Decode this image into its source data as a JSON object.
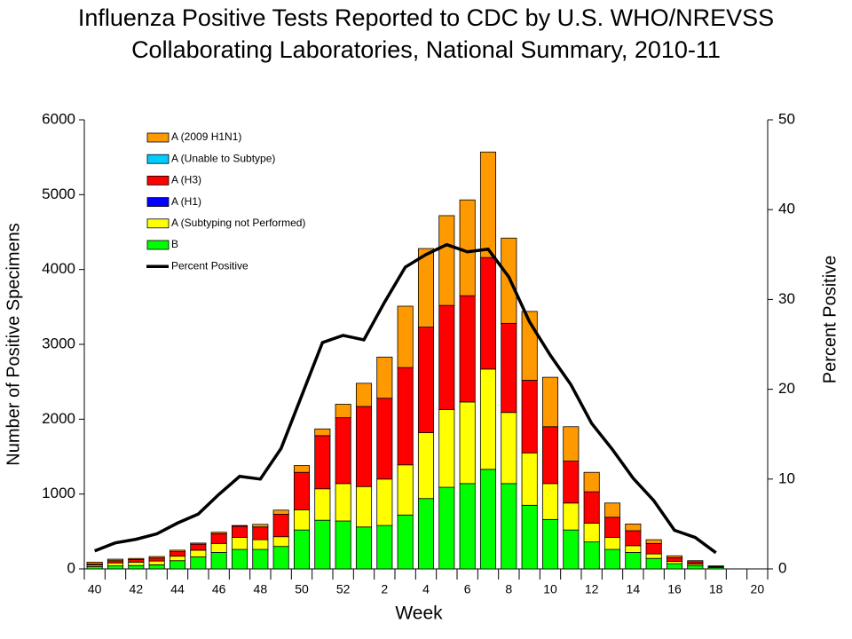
{
  "chart_data": {
    "type": "bar",
    "title": [
      "Influenza Positive Tests Reported to CDC by U.S. WHO/NREVSS",
      "Collaborating Laboratories, National Summary, 2010-11"
    ],
    "x_label": "Week",
    "y_label": "Number of Positive Specimens",
    "y2_label": "Percent Positive",
    "categories": [
      40,
      null,
      42,
      null,
      44,
      null,
      46,
      null,
      48,
      null,
      50,
      null,
      52,
      null,
      2,
      null,
      4,
      null,
      6,
      null,
      8,
      null,
      10,
      null,
      12,
      null,
      14,
      null,
      16,
      null,
      18,
      null,
      20
    ],
    "ylim": [
      0,
      6000
    ],
    "yticks": [
      0,
      1000,
      2000,
      3000,
      4000,
      5000,
      6000
    ],
    "y2lim": [
      0,
      50
    ],
    "y2ticks": [
      0,
      10,
      20,
      30,
      40,
      50
    ],
    "series": [
      {
        "name": "B",
        "color": "#00ff00",
        "values": [
          30,
          40,
          45,
          55,
          110,
          160,
          220,
          260,
          260,
          300,
          520,
          650,
          640,
          560,
          580,
          720,
          940,
          1090,
          1140,
          1330,
          1140,
          850,
          660,
          520,
          360,
          260,
          220,
          140,
          70,
          45,
          20,
          null,
          null
        ]
      },
      {
        "name": "A (Subtyping not Performed)",
        "color": "#ffff00",
        "values": [
          20,
          40,
          45,
          50,
          60,
          90,
          120,
          160,
          130,
          130,
          270,
          420,
          500,
          540,
          620,
          670,
          880,
          1040,
          1090,
          1340,
          950,
          700,
          480,
          360,
          250,
          160,
          90,
          60,
          30,
          20,
          10,
          null,
          null
        ]
      },
      {
        "name": "A (H1)",
        "color": "#0000ff",
        "values": [
          0,
          0,
          0,
          0,
          0,
          0,
          0,
          0,
          0,
          0,
          0,
          0,
          0,
          0,
          0,
          0,
          0,
          0,
          0,
          0,
          0,
          0,
          0,
          0,
          0,
          0,
          0,
          0,
          0,
          0,
          0,
          null,
          null
        ]
      },
      {
        "name": "A (H3)",
        "color": "#ff0000",
        "values": [
          15,
          30,
          35,
          40,
          60,
          80,
          130,
          150,
          170,
          300,
          500,
          710,
          880,
          1070,
          1080,
          1300,
          1410,
          1390,
          1420,
          1490,
          1190,
          970,
          760,
          560,
          420,
          270,
          200,
          140,
          50,
          30,
          5,
          null,
          null
        ]
      },
      {
        "name": "A (Unable to Subtype)",
        "color": "#00ccff",
        "values": [
          0,
          0,
          0,
          0,
          0,
          0,
          0,
          0,
          0,
          0,
          0,
          0,
          0,
          0,
          0,
          0,
          0,
          0,
          0,
          0,
          0,
          0,
          0,
          0,
          0,
          0,
          0,
          0,
          0,
          0,
          0,
          null,
          null
        ]
      },
      {
        "name": "A (2009 H1N1)",
        "color": "#ff9900",
        "values": [
          25,
          20,
          15,
          20,
          20,
          15,
          20,
          10,
          35,
          55,
          90,
          90,
          180,
          310,
          550,
          820,
          1050,
          1200,
          1280,
          1410,
          1140,
          920,
          660,
          460,
          260,
          190,
          90,
          50,
          25,
          15,
          5,
          null,
          null
        ]
      },
      {
        "name": "Percent Positive",
        "color": "#000000",
        "type": "line",
        "axis": "y2",
        "values": [
          2.0,
          2.9,
          3.3,
          3.9,
          5.1,
          6.1,
          8.3,
          10.3,
          10.0,
          13.4,
          19.3,
          25.2,
          26.0,
          25.5,
          29.7,
          33.6,
          35.0,
          36.1,
          35.3,
          35.6,
          32.5,
          27.5,
          23.8,
          20.5,
          16.2,
          13.3,
          10.1,
          7.6,
          4.3,
          3.5,
          1.8,
          null,
          null
        ]
      }
    ]
  }
}
